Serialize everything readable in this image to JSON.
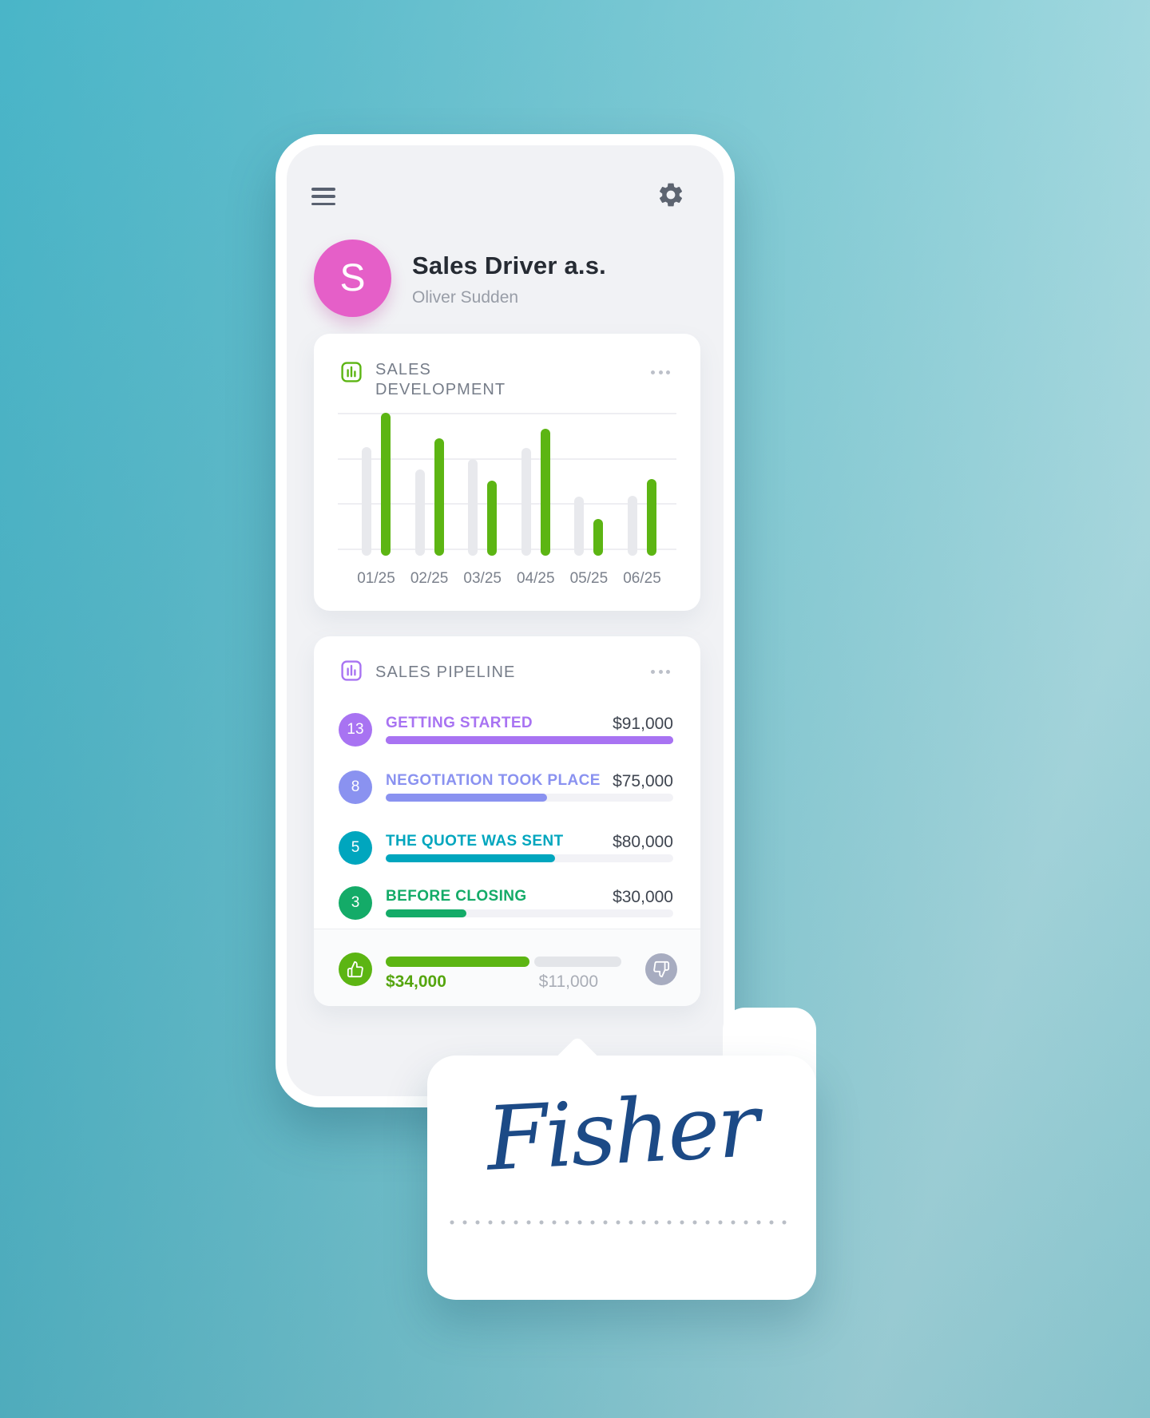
{
  "colors": {
    "accent_green": "#5cb513",
    "bar_gray": "#e8e9ed",
    "grid": "#eeeef2",
    "avatar_pink": "#e55fc8",
    "pipeline_purple": "#a873f2",
    "button_gray": "#a7acc0",
    "signature_blue": "#1c4a86"
  },
  "phone": {
    "profile": {
      "avatar_letter": "S",
      "company": "Sales Driver a.s.",
      "person": "Oliver Sudden"
    }
  },
  "chart_data": {
    "type": "bar",
    "title": "SALES DEVELOPMENT",
    "categories": [
      "01/25",
      "02/25",
      "03/25",
      "04/25",
      "05/25",
      "06/25"
    ],
    "series": [
      {
        "name": "previous-period",
        "color": "#e8e9ed",
        "values": [
          75,
          58,
          66,
          74,
          38,
          39
        ]
      },
      {
        "name": "current-period",
        "color": "#5cb513",
        "values": [
          100,
          81,
          50,
          88,
          22,
          51
        ]
      }
    ],
    "ylim": [
      0,
      100
    ],
    "grid": true,
    "legend": false,
    "xlabel": "",
    "ylabel": ""
  },
  "pipeline": {
    "title": "SALES PIPELINE",
    "rows": [
      {
        "count": "13",
        "label": "GETTING STARTED",
        "value": "$91,000",
        "color": "#a873f2",
        "percent": 100
      },
      {
        "count": "8",
        "label": "NEGOTIATION TOOK PLACE",
        "value": "$75,000",
        "color": "#8a92f0",
        "percent": 56
      },
      {
        "count": "5",
        "label": "THE QUOTE WAS SENT",
        "value": "$80,000",
        "color": "#00a6be",
        "percent": 59
      },
      {
        "count": "3",
        "label": "BEFORE CLOSING",
        "value": "$30,000",
        "color": "#14ab68",
        "percent": 28
      }
    ],
    "footer": {
      "won_value": "$34,000",
      "lost_value": "$11,000",
      "won_color": "#5cb513",
      "won_width": 180,
      "lost_width": 109
    }
  },
  "signature": {
    "name": "Fisher"
  }
}
